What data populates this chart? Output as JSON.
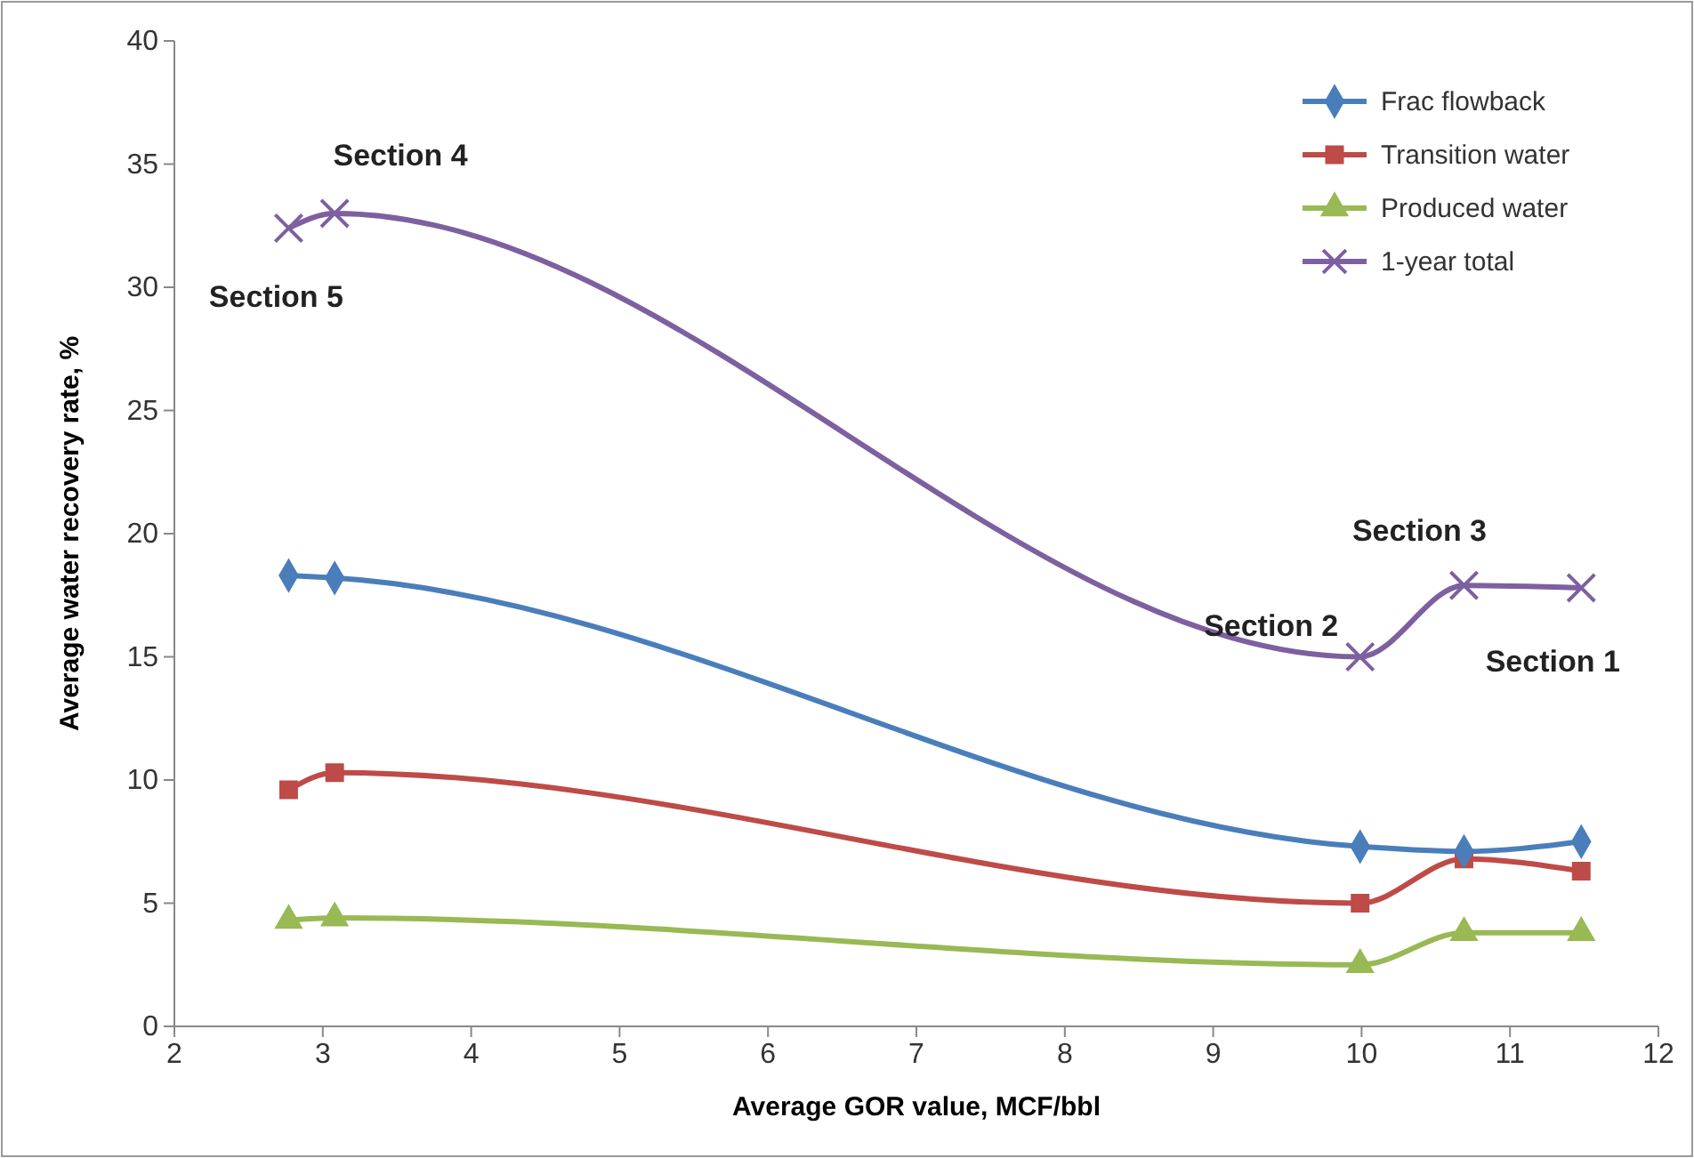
{
  "chart_data": {
    "type": "line",
    "xlabel": "Average GOR value, MCF/bbl",
    "ylabel": "Average water recovery rate, %",
    "x": [
      2.77,
      3.08,
      9.99,
      10.69,
      11.48
    ],
    "xlim": [
      2,
      12
    ],
    "xticks": [
      2,
      3,
      4,
      5,
      6,
      7,
      8,
      9,
      10,
      11,
      12
    ],
    "ylim": [
      0,
      40
    ],
    "yticks": [
      0,
      5,
      10,
      15,
      20,
      25,
      30,
      35,
      40
    ],
    "grid": false,
    "legend": "top right",
    "line_style": "solid",
    "series": [
      {
        "name": "Frac flowback",
        "color": "#4a7ebb",
        "marker": "diamond",
        "values": [
          18.3,
          18.2,
          7.3,
          7.1,
          7.5
        ]
      },
      {
        "name": "Transition water",
        "color": "#be4b48",
        "marker": "square",
        "values": [
          9.6,
          10.3,
          5.0,
          6.8,
          6.3
        ]
      },
      {
        "name": "Produced water",
        "color": "#98b954",
        "marker": "triangle",
        "values": [
          4.3,
          4.4,
          2.5,
          3.8,
          3.8
        ]
      },
      {
        "name": "1-year total",
        "color": "#7d60a0",
        "marker": "cross",
        "values": [
          32.4,
          33.0,
          15.0,
          17.9,
          17.8
        ]
      }
    ],
    "annotations": [
      {
        "text": "Section 5",
        "x": 2.77,
        "y": 32.4
      },
      {
        "text": "Section 4",
        "x": 3.08,
        "y": 33.0
      },
      {
        "text": "Section 2",
        "x": 9.99,
        "y": 15.0
      },
      {
        "text": "Section 3",
        "x": 10.69,
        "y": 17.9
      },
      {
        "text": "Section 1",
        "x": 11.48,
        "y": 17.8
      }
    ]
  }
}
